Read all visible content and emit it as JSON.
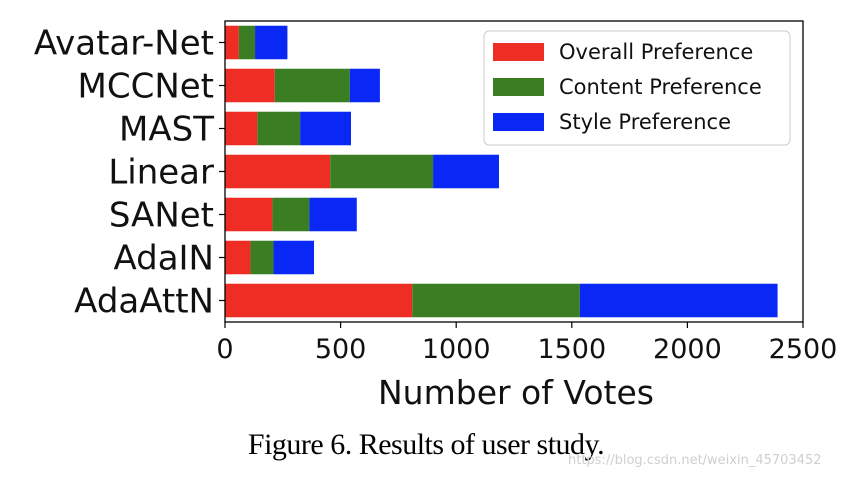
{
  "caption": "Figure 6. Results of user study.",
  "watermark": "https://blog.csdn.net/weixin_45703452",
  "chart_data": {
    "type": "bar",
    "orientation": "horizontal",
    "stacked": true,
    "categories": [
      "Avatar-Net",
      "MCCNet",
      "MAST",
      "Linear",
      "SANet",
      "AdaIN",
      "AdaAttN"
    ],
    "series": [
      {
        "name": "Overall Preference",
        "color": "#ee2e24",
        "values": [
          60,
          215,
          140,
          455,
          205,
          110,
          810
        ]
      },
      {
        "name": "Content Preference",
        "color": "#3a7d22",
        "values": [
          70,
          325,
          185,
          445,
          160,
          100,
          725
        ]
      },
      {
        "name": "Style Preference",
        "color": "#0a28f5",
        "values": [
          140,
          130,
          220,
          285,
          205,
          175,
          855
        ]
      }
    ],
    "xlabel": "Number of Votes",
    "ylabel": "",
    "xlim": [
      0,
      2500
    ],
    "xticks": [
      "0",
      "500",
      "1000",
      "1500",
      "2000",
      "2500"
    ],
    "grid": false,
    "legend_position": "top-right"
  }
}
